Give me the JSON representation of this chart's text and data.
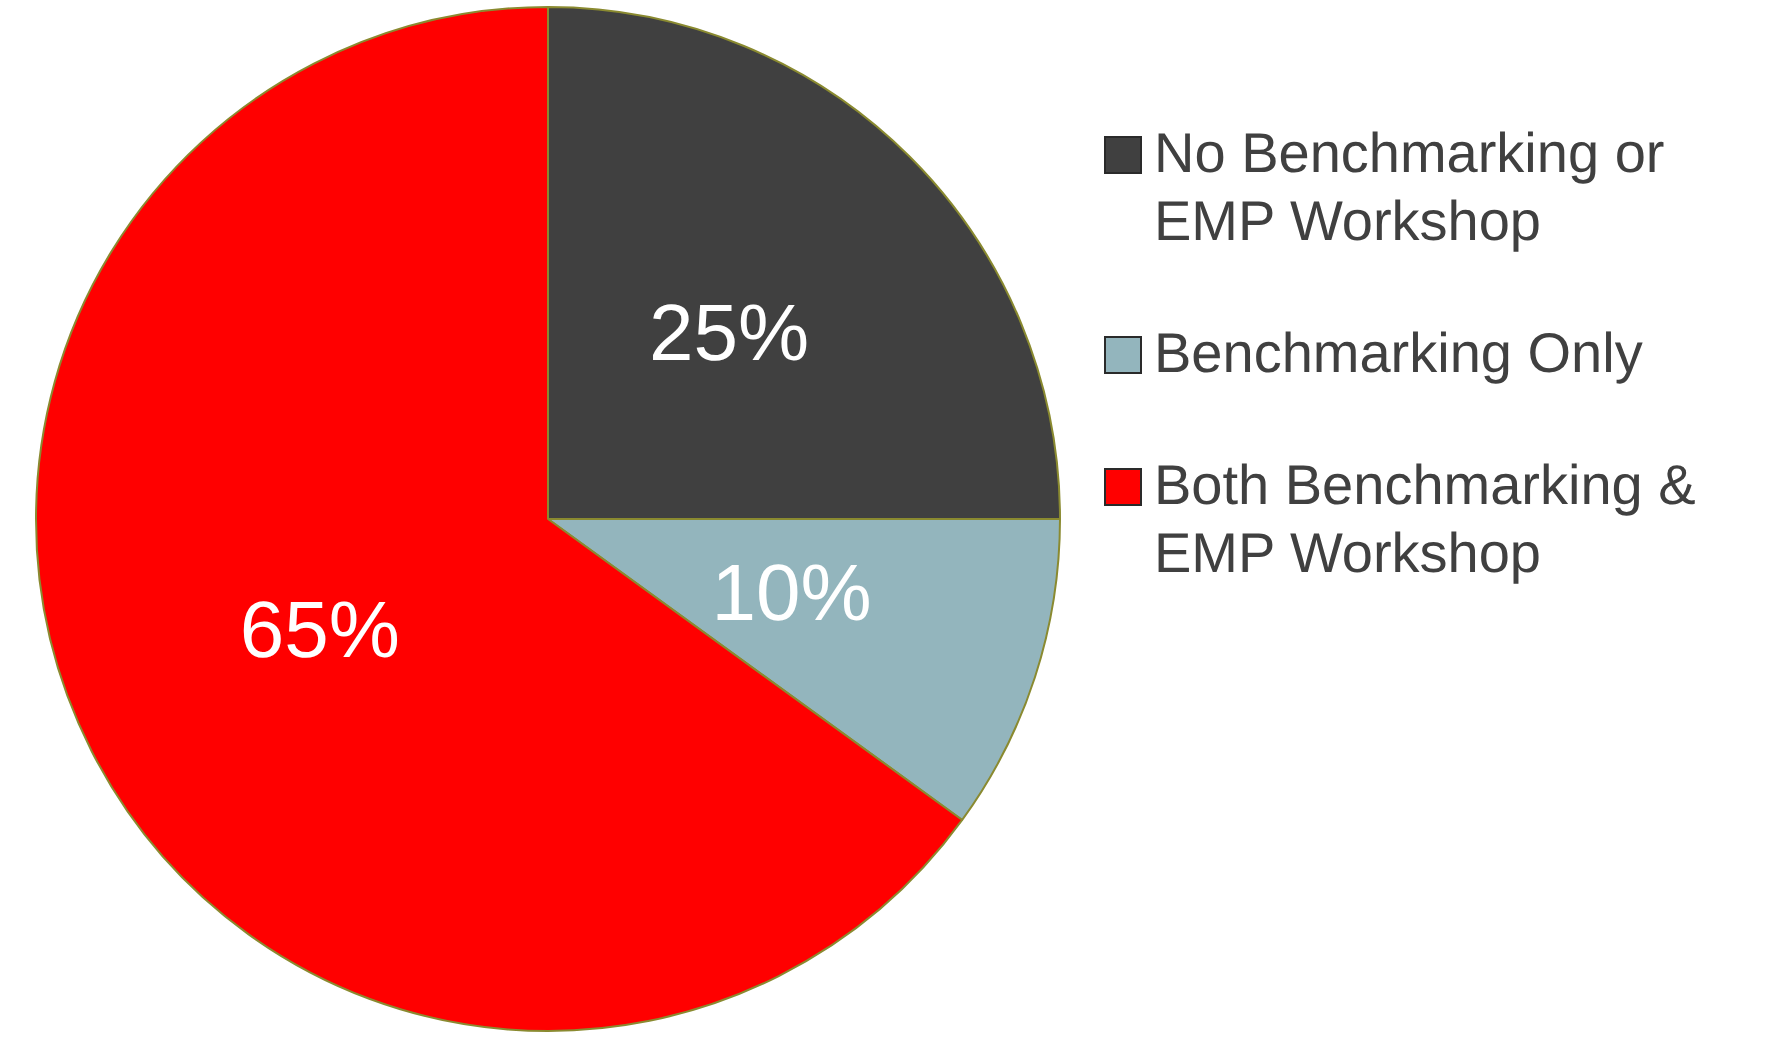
{
  "chart_data": {
    "type": "pie",
    "categories": [
      "No Benchmarking or EMP Workshop",
      "Benchmarking Only",
      "Both Benchmarking & EMP Workshop"
    ],
    "values": [
      25,
      10,
      65
    ],
    "value_labels": [
      "25%",
      "10%",
      "65%"
    ],
    "colors": [
      "#404040",
      "#93b5bd",
      "#ff0000"
    ],
    "legend": "right"
  }
}
